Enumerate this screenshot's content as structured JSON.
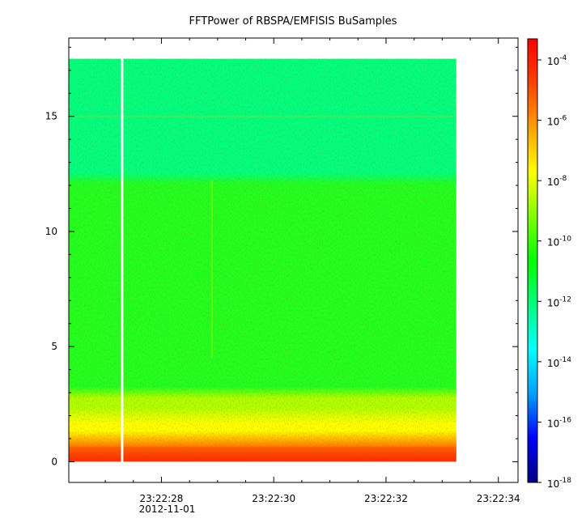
{
  "chart_data": {
    "type": "heatmap",
    "title": "FFTPower of RBSPA/EMFISIS  BuSamples",
    "xlabel": "",
    "ylabel": "",
    "x_date_label": "2012-11-01",
    "x_ticks": [
      "23:22:28",
      "23:22:30",
      "23:22:32",
      "23:22:34"
    ],
    "x_range_seconds": [
      26.35,
      34.35
    ],
    "data_time_range_seconds": [
      26.35,
      33.25
    ],
    "y_ticks": [
      0,
      5,
      10,
      15
    ],
    "ylim": [
      -0.9,
      18.4
    ],
    "data_frequency_range": [
      0,
      17.5
    ],
    "data_gap_time_seconds": 27.3,
    "colorbar": {
      "scale": "log",
      "range": [
        "1e-18",
        "1e-4"
      ],
      "ticks": [
        {
          "base": "10",
          "exp": "-4"
        },
        {
          "base": "10",
          "exp": "-6"
        },
        {
          "base": "10",
          "exp": "-8"
        },
        {
          "base": "10",
          "exp": "-10"
        },
        {
          "base": "10",
          "exp": "-12"
        },
        {
          "base": "10",
          "exp": "-14"
        },
        {
          "base": "10",
          "exp": "-16"
        },
        {
          "base": "10",
          "exp": "-18"
        }
      ],
      "colors": [
        "#000080",
        "#0000ff",
        "#00a0ff",
        "#00ffff",
        "#00ff80",
        "#00ff00",
        "#80ff00",
        "#ffff00",
        "#ffa000",
        "#ff4000",
        "#ff0000"
      ]
    },
    "spectral_bands": [
      {
        "freq_range": [
          0,
          0.5
        ],
        "log_power": -5.5,
        "color": "#ff3000"
      },
      {
        "freq_range": [
          0.5,
          1.0
        ],
        "log_power": -6.5,
        "color": "#ff7800"
      },
      {
        "freq_range": [
          1.0,
          2.0
        ],
        "log_power": -8,
        "color": "#ffff00"
      },
      {
        "freq_range": [
          2.0,
          3.0
        ],
        "log_power": -9,
        "color": "#b0ff00"
      },
      {
        "freq_range": [
          3.0,
          12.3
        ],
        "log_power": -10.5,
        "color": "#20ff20"
      },
      {
        "freq_range": [
          12.3,
          17.5
        ],
        "log_power": -12,
        "color": "#00ff80"
      }
    ],
    "features": [
      {
        "type": "line",
        "freq": 15.0,
        "log_power": -11,
        "color": "#40e860"
      },
      {
        "type": "vertical_streak",
        "time_seconds": 28.9,
        "color": "#80ff00"
      }
    ]
  }
}
